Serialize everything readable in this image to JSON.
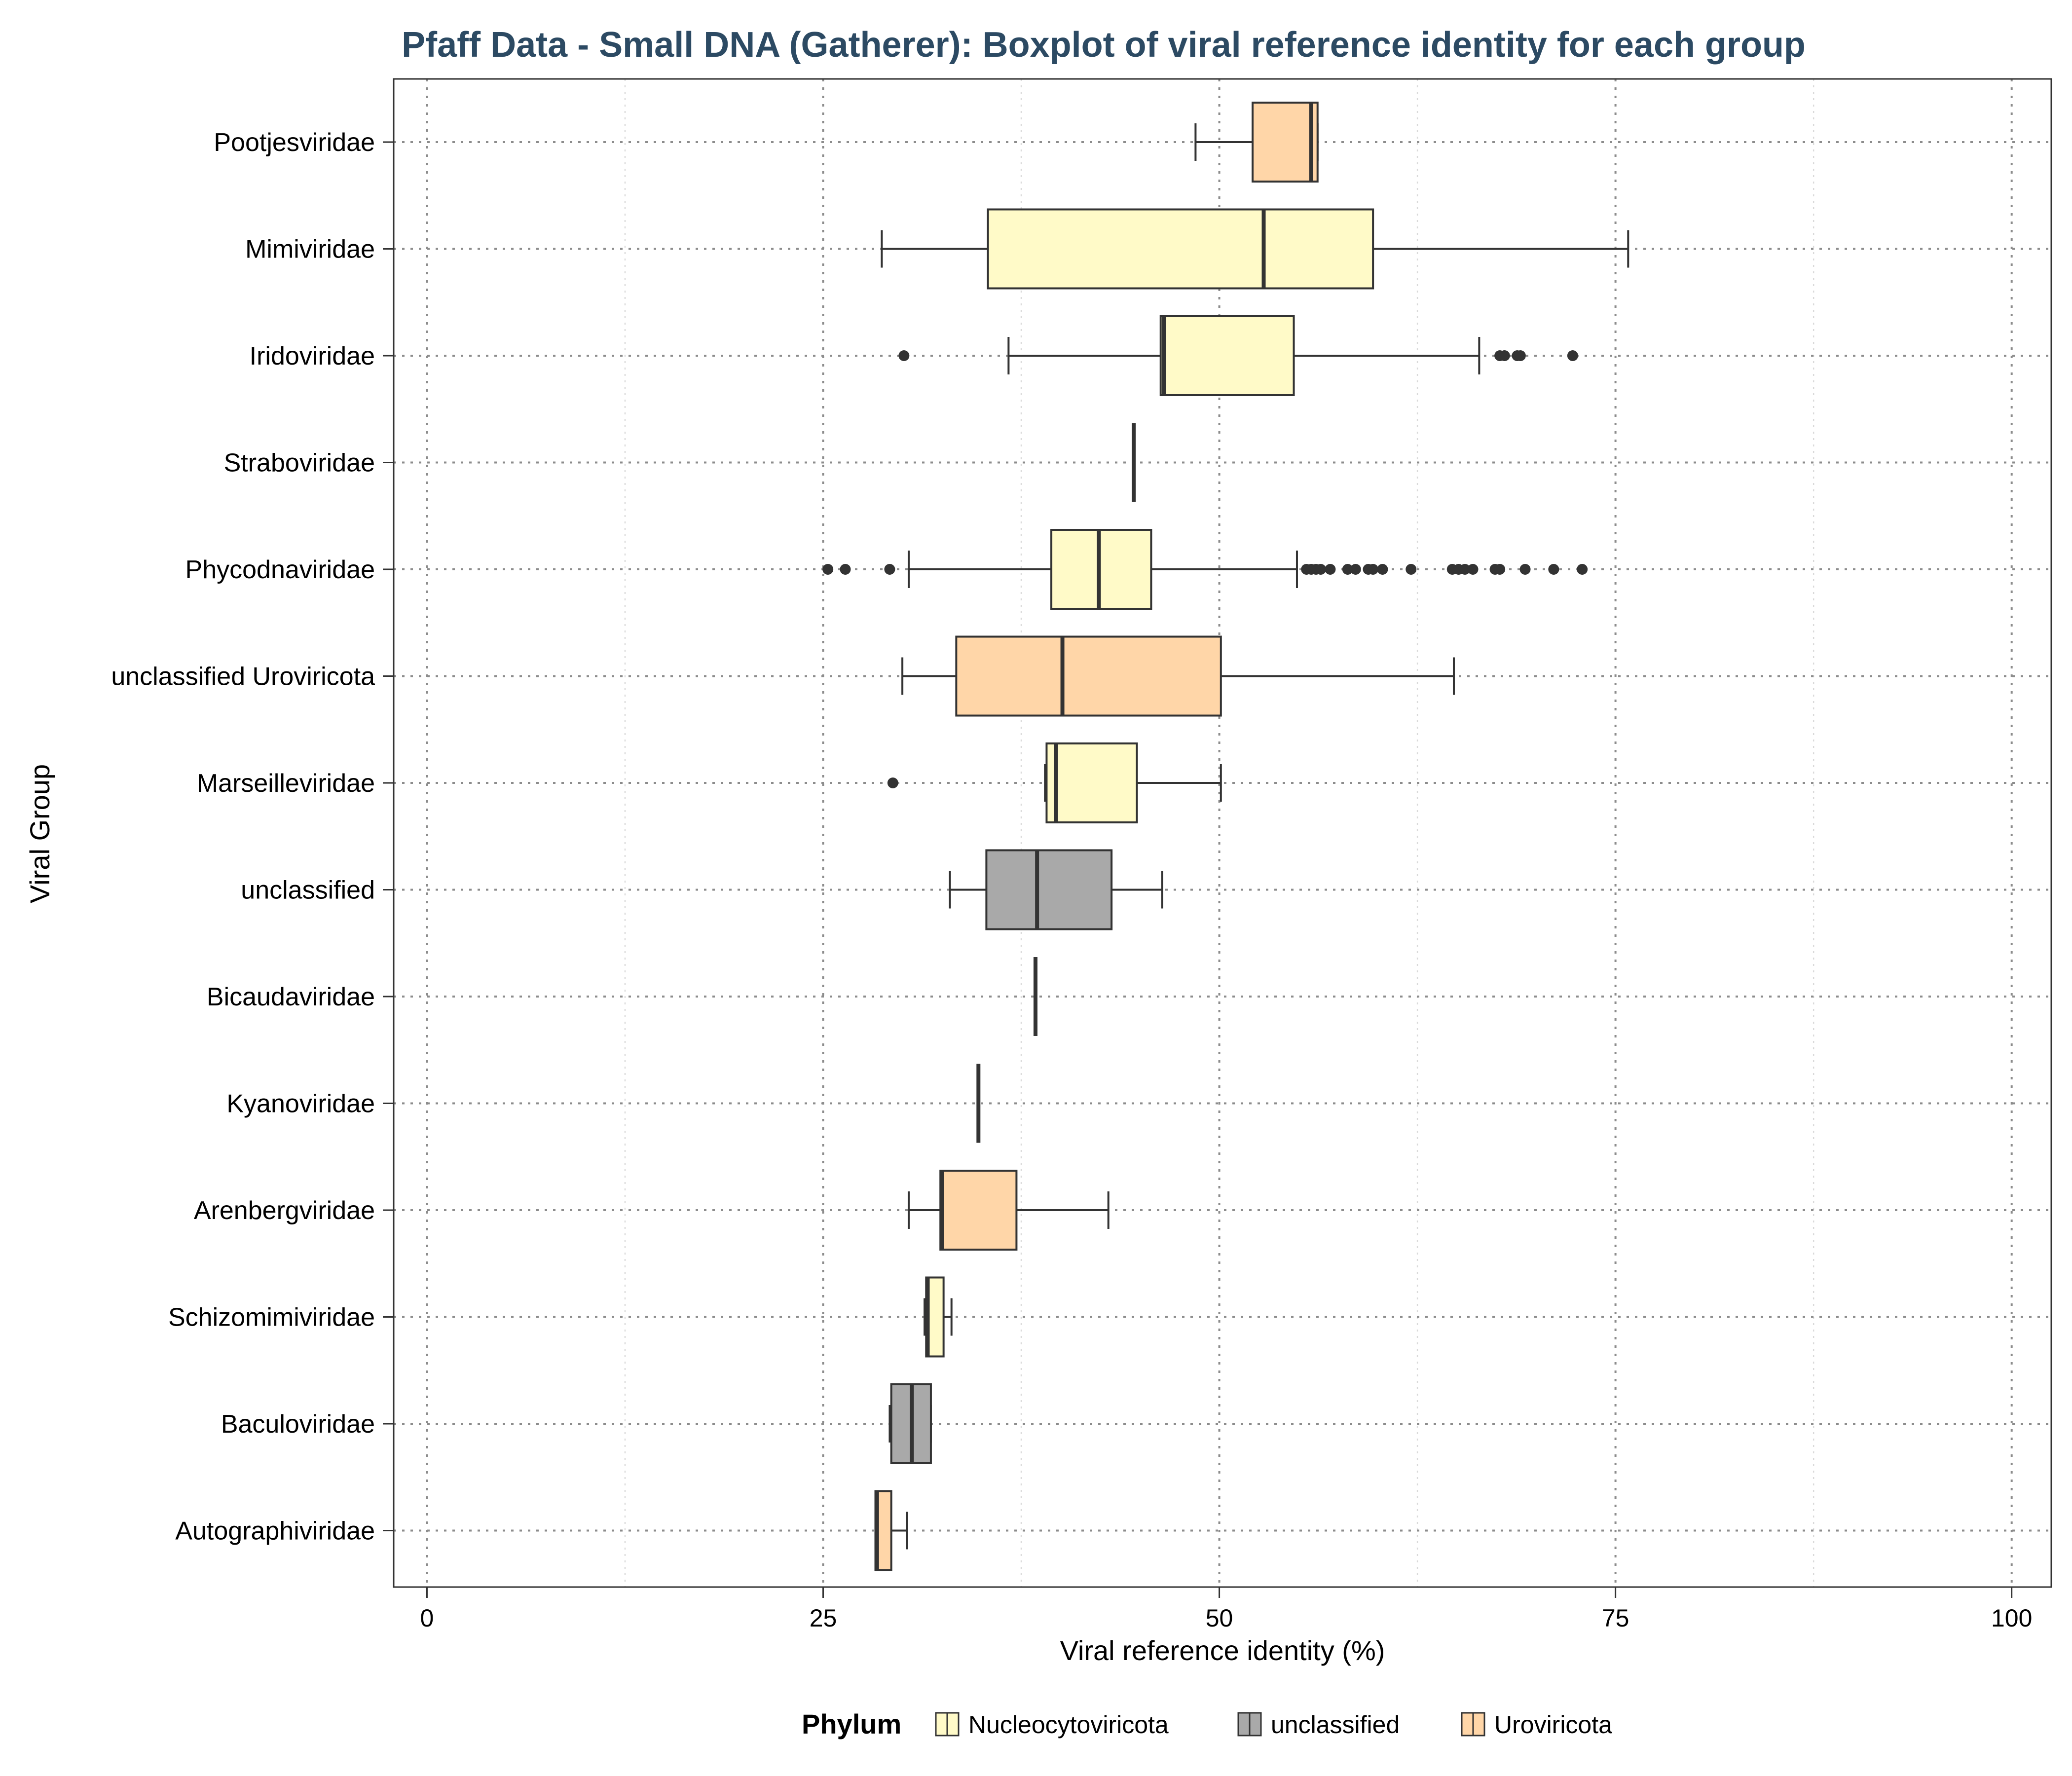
{
  "chart_data": {
    "type": "boxplot",
    "orientation": "horizontal",
    "title": "Pfaff Data - Small DNA (Gatherer): Boxplot of viral reference identity for each group",
    "xlabel": "Viral reference identity (%)",
    "ylabel": "Viral Group",
    "xlim": [
      0,
      100
    ],
    "xticks": [
      0,
      25,
      50,
      75,
      100
    ],
    "x_tick_labels": [
      "0",
      "25",
      "50",
      "75",
      "100"
    ],
    "grid": true,
    "legend": {
      "title": "Phylum",
      "placement": "bottom",
      "entries": [
        {
          "label": "Nucleocytoviricota",
          "color": "#fffac8"
        },
        {
          "label": "unclassified",
          "color": "#a9a9a9"
        },
        {
          "label": "Uroviricota",
          "color": "#ffd6a8"
        }
      ]
    },
    "groups": [
      {
        "name": "Pootjesviridae",
        "phylum": "Uroviricota",
        "whisker_low": 48.5,
        "q1": 52.1,
        "median": 55.8,
        "q3": 56.2,
        "whisker_high": 56.2,
        "outliers": []
      },
      {
        "name": "Mimiviridae",
        "phylum": "Nucleocytoviricota",
        "whisker_low": 28.7,
        "q1": 35.4,
        "median": 52.8,
        "q3": 59.7,
        "whisker_high": 75.8,
        "outliers": []
      },
      {
        "name": "Iridoviridae",
        "phylum": "Nucleocytoviricota",
        "whisker_low": 36.7,
        "q1": 46.3,
        "median": 46.5,
        "q3": 54.7,
        "whisker_high": 66.4,
        "outliers": [
          30.1,
          67.7,
          68.0,
          68.8,
          69.0,
          72.3
        ]
      },
      {
        "name": "Straboviridae",
        "phylum": "Uroviricota",
        "whisker_low": 44.6,
        "q1": 44.6,
        "median": 44.6,
        "q3": 44.6,
        "whisker_high": 44.6,
        "outliers": []
      },
      {
        "name": "Phycodnaviridae",
        "phylum": "Nucleocytoviricota",
        "whisker_low": 30.4,
        "q1": 39.4,
        "median": 42.4,
        "q3": 45.7,
        "whisker_high": 54.9,
        "outliers": [
          25.3,
          26.4,
          29.2,
          55.5,
          55.8,
          56.1,
          56.4,
          57.0,
          58.1,
          58.6,
          59.4,
          59.7,
          60.3,
          62.1,
          64.7,
          65.1,
          65.5,
          66.0,
          67.4,
          67.7,
          69.3,
          71.1,
          72.9
        ]
      },
      {
        "name": "unclassified Uroviricota",
        "phylum": "Uroviricota",
        "whisker_low": 30.0,
        "q1": 33.4,
        "median": 40.1,
        "q3": 50.1,
        "whisker_high": 64.8,
        "outliers": []
      },
      {
        "name": "Marseilleviridae",
        "phylum": "Nucleocytoviricota",
        "whisker_low": 39.0,
        "q1": 39.1,
        "median": 39.7,
        "q3": 44.8,
        "whisker_high": 50.1,
        "outliers": [
          29.4
        ]
      },
      {
        "name": "unclassified",
        "phylum": "unclassified",
        "whisker_low": 33.0,
        "q1": 35.3,
        "median": 38.5,
        "q3": 43.2,
        "whisker_high": 46.4,
        "outliers": []
      },
      {
        "name": "Bicaudaviridae",
        "phylum": "Uroviricota",
        "whisker_low": 38.4,
        "q1": 38.4,
        "median": 38.4,
        "q3": 38.4,
        "whisker_high": 38.4,
        "outliers": []
      },
      {
        "name": "Kyanoviridae",
        "phylum": "Uroviricota",
        "whisker_low": 34.8,
        "q1": 34.8,
        "median": 34.8,
        "q3": 34.8,
        "whisker_high": 34.8,
        "outliers": []
      },
      {
        "name": "Arenbergviridae",
        "phylum": "Uroviricota",
        "whisker_low": 30.4,
        "q1": 32.4,
        "median": 32.5,
        "q3": 37.2,
        "whisker_high": 43.0,
        "outliers": []
      },
      {
        "name": "Schizomimiviridae",
        "phylum": "Nucleocytoviricota",
        "whisker_low": 31.4,
        "q1": 31.5,
        "median": 31.6,
        "q3": 32.6,
        "whisker_high": 33.1,
        "outliers": []
      },
      {
        "name": "Baculoviridae",
        "phylum": "unclassified",
        "whisker_low": 29.2,
        "q1": 29.3,
        "median": 30.6,
        "q3": 31.8,
        "whisker_high": 31.8,
        "outliers": []
      },
      {
        "name": "Autographiviridae",
        "phylum": "Uroviricota",
        "whisker_low": 28.3,
        "q1": 28.3,
        "median": 28.4,
        "q3": 29.3,
        "whisker_high": 30.3,
        "outliers": []
      }
    ]
  }
}
